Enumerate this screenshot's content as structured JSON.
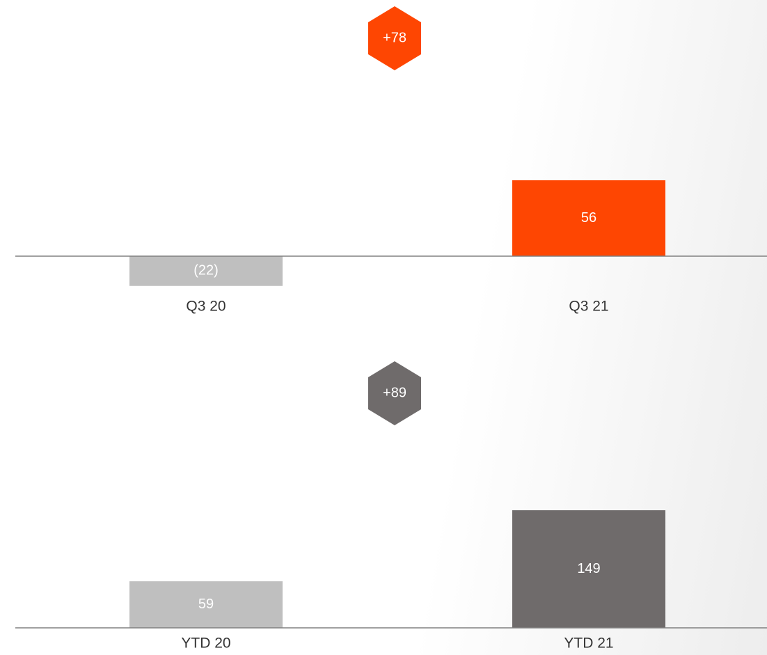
{
  "chart_data": [
    {
      "type": "bar",
      "categories": [
        "Q3 20",
        "Q3 21"
      ],
      "values": [
        -22,
        56
      ],
      "value_labels": [
        "(22)",
        "56"
      ],
      "colors": [
        "#bfbfbf",
        "#fe4602"
      ],
      "ylim": [
        -25,
        130
      ],
      "annotation": "+78",
      "annotation_color": "#fe4602"
    },
    {
      "type": "bar",
      "categories": [
        "YTD 20",
        "YTD 21"
      ],
      "values": [
        59,
        149
      ],
      "colors": [
        "#bfbfbf",
        "#6f6b6b"
      ],
      "ylim": [
        0,
        330
      ],
      "annotation": "+89",
      "annotation_color": "#6f6b6b"
    }
  ]
}
